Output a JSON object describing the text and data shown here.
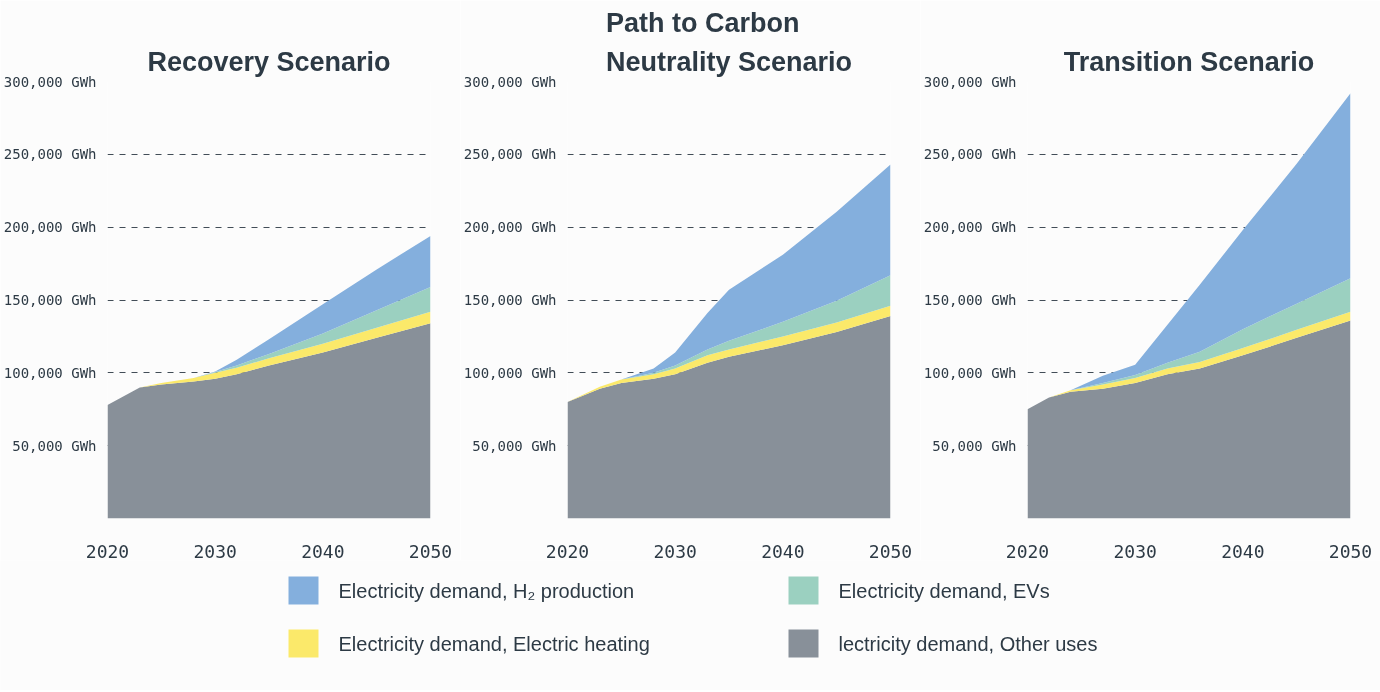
{
  "chart_data": [
    {
      "type": "area",
      "title": "Recovery Scenario",
      "stacked": true,
      "x": [
        2020,
        2023,
        2025,
        2028,
        2030,
        2032,
        2035,
        2040,
        2045,
        2050
      ],
      "series": [
        {
          "name": "lectricity demand, Other uses",
          "color": "#889099",
          "values": [
            78000,
            90000,
            92000,
            94000,
            96000,
            99000,
            105000,
            114000,
            124000,
            134000
          ]
        },
        {
          "name": "Electricity demand, Electric heating",
          "color": "#fbe96a",
          "values": [
            0,
            0,
            1000,
            2500,
            4000,
            4500,
            5000,
            6000,
            7000,
            8000
          ]
        },
        {
          "name": "Electricity demand, EVs",
          "color": "#9bd0c0",
          "values": [
            0,
            0,
            0,
            0,
            500,
            1500,
            3000,
            7000,
            12000,
            17000
          ]
        },
        {
          "name": "Electricity demand, H₂ production",
          "color": "#84afdd",
          "values": [
            0,
            0,
            0,
            0,
            500,
            4000,
            10000,
            20000,
            28000,
            35000
          ]
        }
      ],
      "xlim": [
        2020,
        2050
      ],
      "xticks": [
        2020,
        2030,
        2040,
        2050
      ],
      "ylim": [
        0,
        300000
      ],
      "yticks": [
        {
          "value": 50000,
          "label": "50,000 GWh"
        },
        {
          "value": 100000,
          "label": "100,000 GWh"
        },
        {
          "value": 150000,
          "label": "150,000 GWh"
        },
        {
          "value": 200000,
          "label": "200,000 GWh"
        },
        {
          "value": 250000,
          "label": "250,000 GWh"
        },
        {
          "value": 300000,
          "label": "300,000 GWh"
        }
      ],
      "grid": "y",
      "legend": "bottom"
    },
    {
      "type": "area",
      "title": "Path to Carbon Neutrality Scenario",
      "stacked": true,
      "x": [
        2020,
        2023,
        2025,
        2028,
        2030,
        2033,
        2035,
        2040,
        2045,
        2050
      ],
      "series": [
        {
          "color": "#889099",
          "values": [
            80000,
            89000,
            93000,
            96000,
            99000,
            107000,
            111000,
            119000,
            128000,
            139000
          ]
        },
        {
          "color": "#fbe96a",
          "values": [
            0,
            1500,
            2500,
            3000,
            4000,
            5000,
            5000,
            6000,
            6500,
            7000
          ]
        },
        {
          "color": "#9bd0c0",
          "values": [
            0,
            0,
            0,
            1000,
            2000,
            4000,
            6000,
            10000,
            15000,
            21000
          ]
        },
        {
          "color": "#84afdd",
          "values": [
            0,
            0,
            0,
            3000,
            9000,
            25000,
            35000,
            46000,
            61000,
            76000
          ]
        }
      ],
      "xlim": [
        2020,
        2050
      ],
      "xticks": [
        2020,
        2030,
        2040,
        2050
      ],
      "ylim": [
        0,
        300000
      ],
      "yticks": [
        {
          "value": 50000,
          "label": "50,000 GWh"
        },
        {
          "value": 100000,
          "label": "100,000 GWh"
        },
        {
          "value": 150000,
          "label": "150,000 GWh"
        },
        {
          "value": 200000,
          "label": "200,000 GWh"
        },
        {
          "value": 250000,
          "label": "250,000 GWh"
        },
        {
          "value": 300000,
          "label": "300,000 GWh"
        }
      ],
      "grid": "y"
    },
    {
      "type": "area",
      "title": "Transition Scenario",
      "stacked": true,
      "x": [
        2020,
        2022,
        2024,
        2027,
        2030,
        2033,
        2036,
        2040,
        2045,
        2050
      ],
      "series": [
        {
          "color": "#889099",
          "values": [
            75000,
            83000,
            87000,
            89000,
            93000,
            99000,
            103000,
            112000,
            124000,
            136000
          ]
        },
        {
          "color": "#fbe96a",
          "values": [
            0,
            0,
            1000,
            3000,
            3500,
            4000,
            4500,
            5000,
            5500,
            6000
          ]
        },
        {
          "color": "#9bd0c0",
          "values": [
            0,
            0,
            0,
            1000,
            2000,
            4000,
            7000,
            13000,
            18000,
            23000
          ]
        },
        {
          "color": "#84afdd",
          "values": [
            0,
            0,
            0,
            5000,
            7000,
            26000,
            46000,
            68000,
            96000,
            127000
          ]
        }
      ],
      "xlim": [
        2020,
        2050
      ],
      "xticks": [
        2020,
        2030,
        2040,
        2050
      ],
      "ylim": [
        0,
        300000
      ],
      "yticks": [
        {
          "value": 50000,
          "label": "50,000 GWh"
        },
        {
          "value": 100000,
          "label": "100,000 GWh"
        },
        {
          "value": 150000,
          "label": "150,000 GWh"
        },
        {
          "value": 200000,
          "label": "200,000 GWh"
        },
        {
          "value": 250000,
          "label": "250,000 GWh"
        },
        {
          "value": 300000,
          "label": "300,000 GWh"
        }
      ],
      "grid": "y"
    }
  ]
}
